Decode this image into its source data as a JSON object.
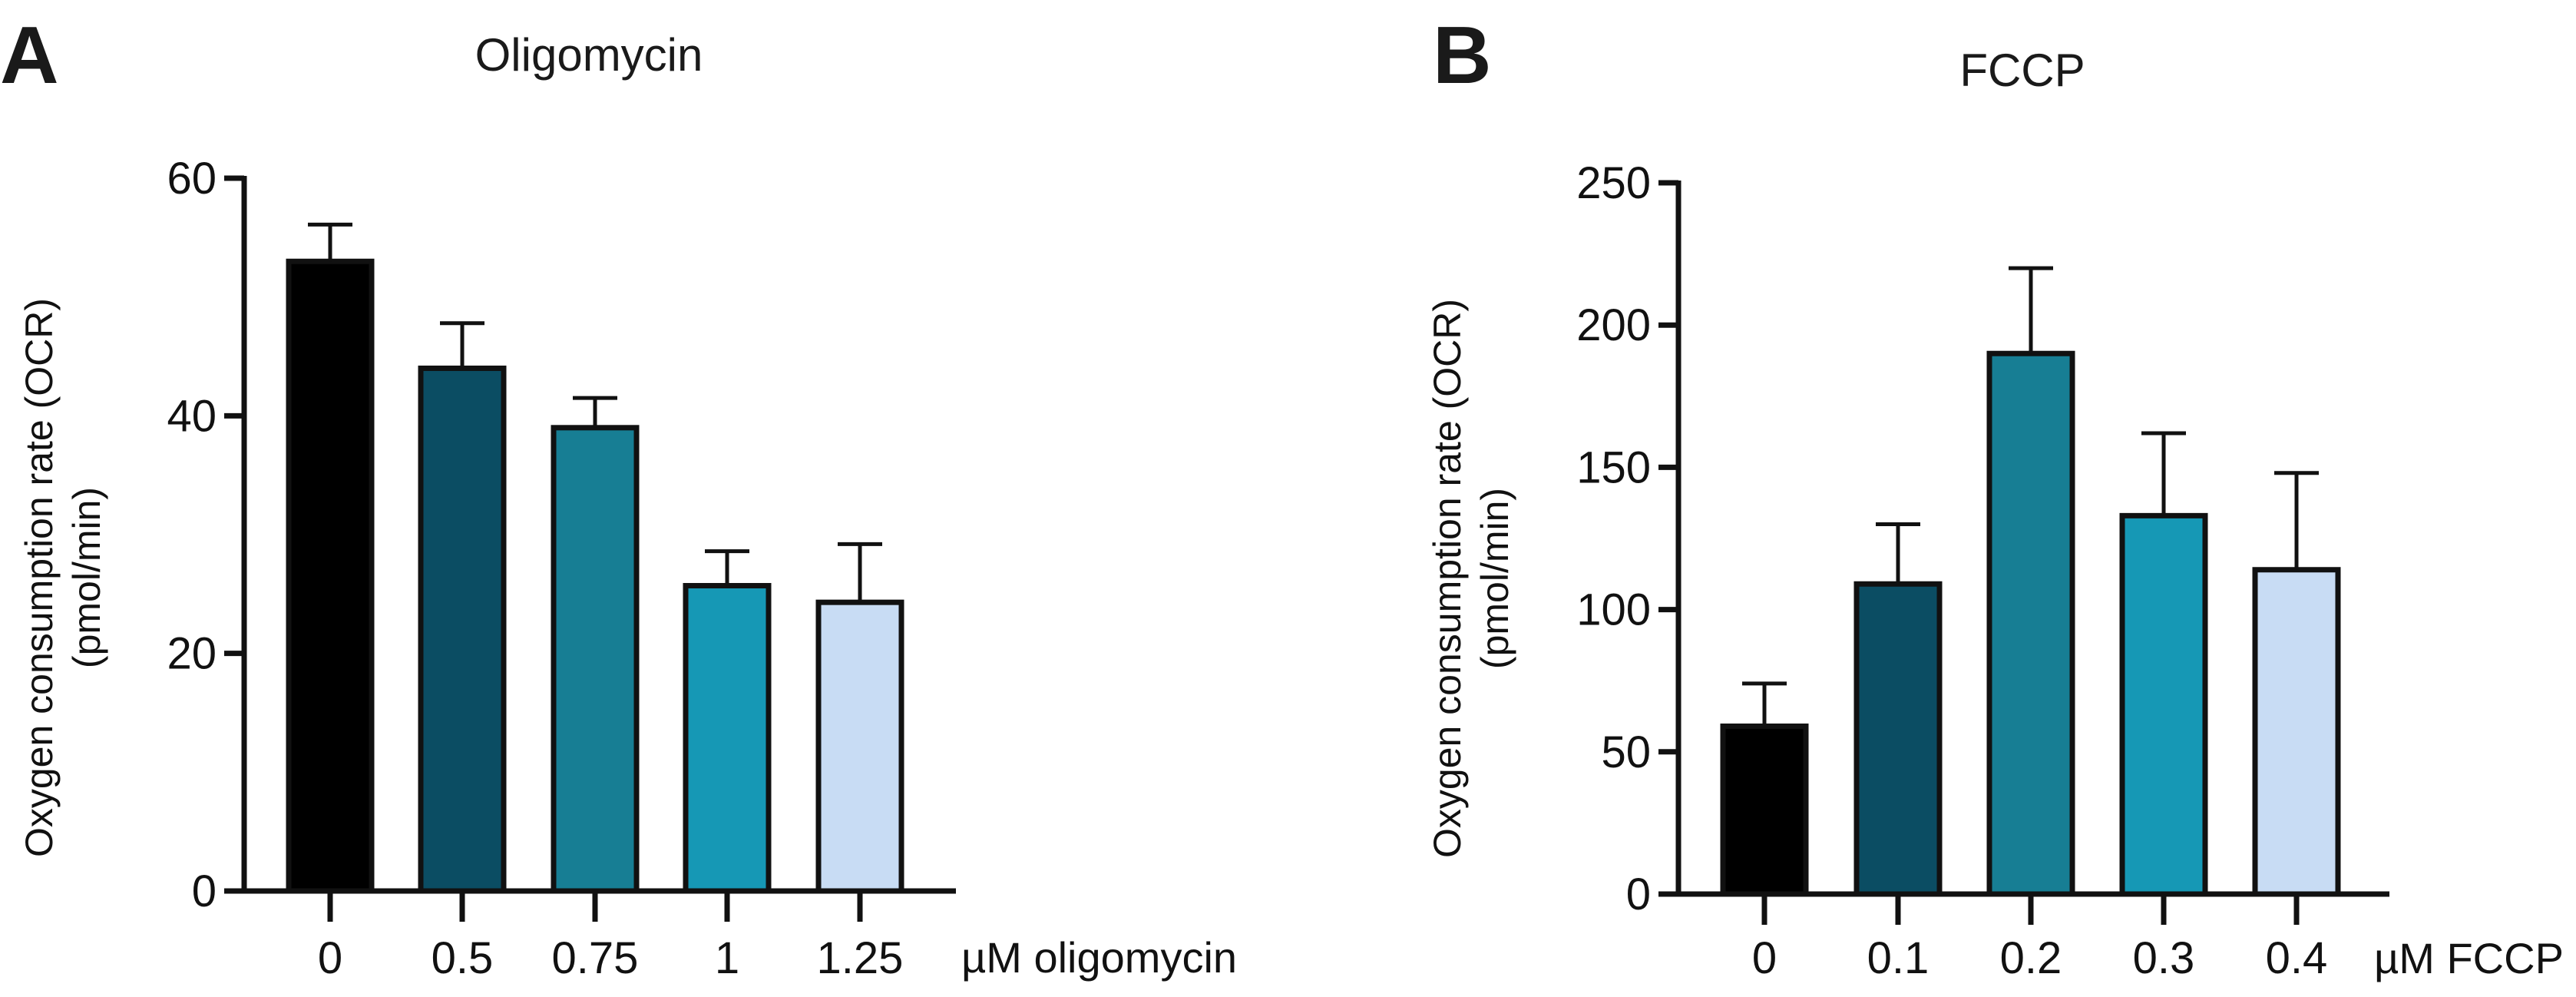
{
  "chart_data": [
    {
      "type": "bar",
      "panel": "A",
      "title": "Oligomycin",
      "ylabel_line1": "Oxygen consumption rate (OCR)",
      "ylabel_line2": "(pmol/min)",
      "xunit": "µM oligomycin",
      "categories": [
        "0",
        "0.5",
        "0.75",
        "1",
        "1.25"
      ],
      "values": [
        53,
        44,
        39,
        25.7,
        24.3
      ],
      "errors": [
        3.1,
        3.8,
        2.5,
        2.9,
        4.9
      ],
      "colors": [
        "#000000",
        "#0b4d63",
        "#177e94",
        "#1698b5",
        "#c8dcf4"
      ],
      "ylim": [
        0,
        60
      ],
      "yticks": [
        0,
        20,
        40,
        60
      ],
      "ytick_labels": [
        "0",
        "20",
        "40",
        "60"
      ]
    },
    {
      "type": "bar",
      "panel": "B",
      "title": "FCCP",
      "ylabel_line1": "Oxygen consumption rate (OCR)",
      "ylabel_line2": "(pmol/min)",
      "xunit": "µM FCCP",
      "categories": [
        "0",
        "0.1",
        "0.2",
        "0.3",
        "0.4"
      ],
      "values": [
        59,
        109,
        190,
        133,
        114
      ],
      "errors": [
        15,
        21,
        30,
        29,
        34
      ],
      "colors": [
        "#000000",
        "#0b4d63",
        "#177e94",
        "#1698b5",
        "#c8dcf4"
      ],
      "ylim": [
        0,
        250
      ],
      "yticks": [
        0,
        50,
        100,
        150,
        200,
        250
      ],
      "ytick_labels": [
        "0",
        "50",
        "100",
        "150",
        "200",
        "250"
      ]
    }
  ]
}
